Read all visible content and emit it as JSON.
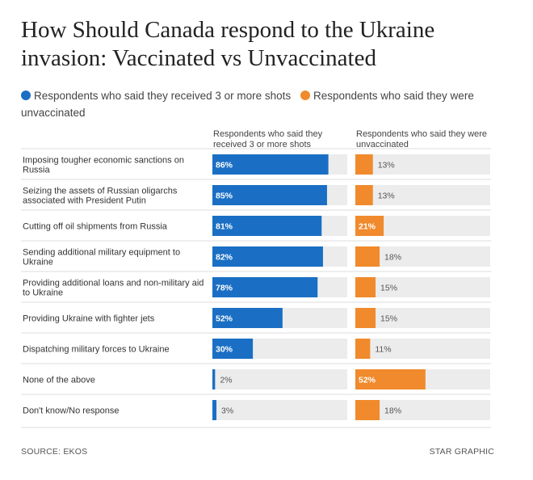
{
  "title": "How Should Canada respond to the Ukraine invasion: Vaccinated vs Unvaccinated",
  "legend": [
    {
      "label": "Respondents who said they received 3 or more shots",
      "color": "#1a6fc4"
    },
    {
      "label": "Respondents who said they were unvaccinated",
      "color": "#f08a2c"
    }
  ],
  "column_headers": {
    "vaccinated": "Respondents who said they received 3 or more shots",
    "unvaccinated": "Respondents who said they were unvaccinated"
  },
  "footer": {
    "source": "SOURCE: EKOS",
    "credit": "STAR GRAPHIC"
  },
  "colors": {
    "vaccinated": "#1a6fc4",
    "unvaccinated": "#f08a2c",
    "track": "#ececec",
    "divider": "#dddddd"
  },
  "chart_data": {
    "type": "bar",
    "orientation": "horizontal",
    "title": "How Should Canada respond to the Ukraine invasion: Vaccinated vs Unvaccinated",
    "xlim": [
      0,
      100
    ],
    "unit": "%",
    "categories": [
      "Imposing tougher economic sanctions on Russia",
      "Seizing the assets of Russian oligarchs associated with President Putin",
      "Cutting off oil shipments from Russia",
      "Sending additional military equipment to Ukraine",
      "Providing additional loans and non-military aid to Ukraine",
      "Providing Ukraine with fighter jets",
      "Dispatching military forces to Ukraine",
      "None of the above",
      "Don't know/No response"
    ],
    "series": [
      {
        "name": "Respondents who said they received 3 or more shots",
        "values": [
          86,
          85,
          81,
          82,
          78,
          52,
          30,
          2,
          3
        ]
      },
      {
        "name": "Respondents who said they were unvaccinated",
        "values": [
          13,
          13,
          21,
          18,
          15,
          15,
          11,
          52,
          18
        ]
      }
    ]
  }
}
